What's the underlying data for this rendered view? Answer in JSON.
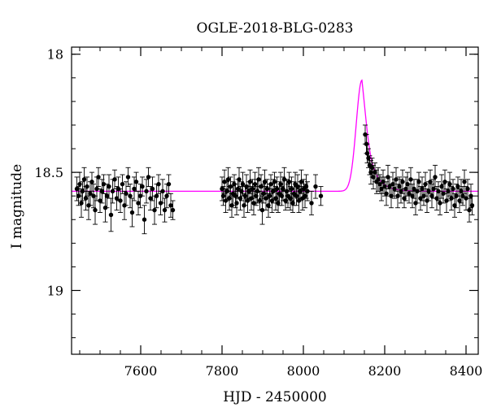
{
  "chart_data": {
    "type": "scatter",
    "title": "OGLE-2018-BLG-0283",
    "xlabel": "HJD - 2450000",
    "ylabel": "I magnitude",
    "xlim": [
      7430,
      8430
    ],
    "ylim": [
      19.27,
      17.97
    ],
    "y_inverted": true,
    "x_ticks": [
      7600,
      7800,
      8000,
      8200,
      8400
    ],
    "x_minor_step": 50,
    "y_ticks": [
      18,
      18.5,
      19
    ],
    "y_tick_labels": [
      "18",
      "18.5",
      "19"
    ],
    "y_minor_step": 0.1,
    "grid": false,
    "colors": {
      "points": "#000000",
      "model": "#ff00ff",
      "axes": "#000000"
    },
    "series": [
      {
        "kind": "observations",
        "error_bars": true,
        "seasons": [
          {
            "x": [
              7443,
              7447,
              7450,
              7454,
              7457,
              7461,
              7465,
              7468,
              7472,
              7476,
              7480,
              7484,
              7488,
              7492,
              7496,
              7500,
              7505,
              7509,
              7513,
              7517,
              7522,
              7527,
              7531,
              7536,
              7541,
              7545,
              7550,
              7555,
              7560,
              7564,
              7569,
              7574,
              7579,
              7584,
              7589,
              7594,
              7599,
              7604,
              7609,
              7614,
              7619,
              7624,
              7629,
              7634,
              7639,
              7644,
              7649,
              7654,
              7659,
              7664,
              7669,
              7674,
              7679
            ],
            "y": [
              18.57,
              18.6,
              18.55,
              18.63,
              18.58,
              18.53,
              18.61,
              18.56,
              18.64,
              18.59,
              18.54,
              18.6,
              18.66,
              18.57,
              18.52,
              18.62,
              18.58,
              18.55,
              18.65,
              18.6,
              18.56,
              18.68,
              18.58,
              18.53,
              18.61,
              18.57,
              18.62,
              18.55,
              18.64,
              18.59,
              18.52,
              18.6,
              18.67,
              18.57,
              18.54,
              18.63,
              18.6,
              18.56,
              18.7,
              18.58,
              18.52,
              18.61,
              18.57,
              18.66,
              18.6,
              18.55,
              18.63,
              18.58,
              18.66,
              18.6,
              18.55,
              18.64,
              18.66
            ],
            "err": [
              0.05,
              0.04,
              0.05,
              0.06,
              0.04,
              0.05,
              0.05,
              0.04,
              0.06,
              0.05,
              0.04,
              0.05,
              0.06,
              0.05,
              0.04,
              0.05,
              0.05,
              0.04,
              0.06,
              0.05,
              0.05,
              0.07,
              0.05,
              0.04,
              0.05,
              0.05,
              0.05,
              0.04,
              0.06,
              0.05,
              0.04,
              0.05,
              0.06,
              0.05,
              0.04,
              0.05,
              0.05,
              0.04,
              0.06,
              0.05,
              0.04,
              0.05,
              0.05,
              0.06,
              0.05,
              0.04,
              0.05,
              0.05,
              0.05,
              0.05,
              0.04,
              0.05,
              0.04
            ]
          },
          {
            "x": [
              7800,
              7803,
              7806,
              7809,
              7812,
              7815,
              7818,
              7821,
              7824,
              7827,
              7830,
              7833,
              7836,
              7839,
              7842,
              7845,
              7848,
              7851,
              7854,
              7857,
              7860,
              7863,
              7866,
              7869,
              7872,
              7875,
              7878,
              7881,
              7884,
              7887,
              7890,
              7893,
              7896,
              7899,
              7902,
              7905,
              7908,
              7911,
              7914,
              7917,
              7920,
              7923,
              7926,
              7929,
              7932,
              7935,
              7938,
              7941,
              7944,
              7947,
              7950,
              7953,
              7956,
              7959,
              7962,
              7965,
              7968,
              7971,
              7974,
              7977,
              7980,
              7983,
              7986,
              7989,
              7992,
              7995,
              7998,
              8001,
              8004,
              8007,
              8010,
              8020,
              8030,
              8043
            ],
            "y": [
              18.57,
              18.6,
              18.54,
              18.62,
              18.58,
              18.53,
              18.61,
              18.56,
              18.64,
              18.59,
              18.55,
              18.6,
              18.63,
              18.57,
              18.53,
              18.61,
              18.58,
              18.55,
              18.64,
              18.6,
              18.56,
              18.62,
              18.58,
              18.54,
              18.61,
              18.57,
              18.63,
              18.55,
              18.6,
              18.58,
              18.53,
              18.62,
              18.56,
              18.66,
              18.59,
              18.54,
              18.61,
              18.57,
              18.64,
              18.6,
              18.55,
              18.62,
              18.58,
              18.54,
              18.61,
              18.57,
              18.63,
              18.59,
              18.55,
              18.6,
              18.57,
              18.53,
              18.62,
              18.58,
              18.6,
              18.54,
              18.61,
              18.57,
              18.63,
              18.59,
              18.55,
              18.6,
              18.56,
              18.62,
              18.58,
              18.54,
              18.61,
              18.57,
              18.6,
              18.56,
              18.58,
              18.63,
              18.56,
              18.6
            ],
            "err": [
              0.05,
              0.04,
              0.05,
              0.05,
              0.04,
              0.05,
              0.05,
              0.04,
              0.05,
              0.05,
              0.04,
              0.05,
              0.05,
              0.04,
              0.05,
              0.05,
              0.04,
              0.05,
              0.05,
              0.04,
              0.05,
              0.05,
              0.04,
              0.05,
              0.05,
              0.04,
              0.05,
              0.05,
              0.04,
              0.05,
              0.05,
              0.04,
              0.05,
              0.06,
              0.04,
              0.05,
              0.05,
              0.04,
              0.05,
              0.05,
              0.04,
              0.05,
              0.05,
              0.04,
              0.05,
              0.05,
              0.04,
              0.05,
              0.05,
              0.04,
              0.05,
              0.05,
              0.04,
              0.05,
              0.05,
              0.04,
              0.05,
              0.05,
              0.04,
              0.05,
              0.05,
              0.04,
              0.05,
              0.05,
              0.04,
              0.05,
              0.05,
              0.04,
              0.05,
              0.05,
              0.04,
              0.05,
              0.05,
              0.04
            ]
          },
          {
            "x": [
              8152,
              8155,
              8157,
              8160,
              8163,
              8166,
              8169,
              8172,
              8176,
              8180,
              8184,
              8188,
              8192,
              8196,
              8200,
              8204,
              8208,
              8212,
              8216,
              8220,
              8224,
              8228,
              8232,
              8236,
              8240,
              8244,
              8248,
              8252,
              8256,
              8260,
              8264,
              8268,
              8272,
              8276,
              8280,
              8284,
              8288,
              8292,
              8296,
              8300,
              8304,
              8308,
              8312,
              8316,
              8320,
              8324,
              8328,
              8332,
              8336,
              8340,
              8344,
              8348,
              8352,
              8356,
              8360,
              8364,
              8368,
              8372,
              8376,
              8380,
              8384,
              8388,
              8392,
              8396,
              8400,
              8404,
              8408,
              8412,
              8415
            ],
            "y": [
              18.34,
              18.38,
              18.42,
              18.44,
              18.47,
              18.5,
              18.48,
              18.52,
              18.5,
              18.54,
              18.53,
              18.55,
              18.57,
              18.54,
              18.56,
              18.59,
              18.52,
              18.56,
              18.6,
              18.55,
              18.57,
              18.53,
              18.6,
              18.56,
              18.58,
              18.54,
              18.61,
              18.57,
              18.55,
              18.59,
              18.53,
              18.6,
              18.57,
              18.63,
              18.58,
              18.54,
              18.61,
              18.57,
              18.6,
              18.55,
              18.62,
              18.58,
              18.54,
              18.6,
              18.57,
              18.52,
              18.61,
              18.58,
              18.63,
              18.56,
              18.59,
              18.54,
              18.62,
              18.58,
              18.55,
              18.61,
              18.57,
              18.64,
              18.6,
              18.56,
              18.62,
              18.58,
              18.6,
              18.54,
              18.61,
              18.57,
              18.66,
              18.6,
              18.64
            ],
            "err": [
              0.04,
              0.04,
              0.04,
              0.04,
              0.04,
              0.05,
              0.04,
              0.05,
              0.04,
              0.05,
              0.05,
              0.04,
              0.05,
              0.05,
              0.04,
              0.05,
              0.05,
              0.04,
              0.05,
              0.05,
              0.04,
              0.05,
              0.05,
              0.04,
              0.05,
              0.05,
              0.04,
              0.05,
              0.05,
              0.04,
              0.05,
              0.05,
              0.04,
              0.05,
              0.05,
              0.04,
              0.05,
              0.05,
              0.04,
              0.05,
              0.05,
              0.04,
              0.05,
              0.05,
              0.04,
              0.05,
              0.05,
              0.04,
              0.05,
              0.05,
              0.04,
              0.05,
              0.05,
              0.04,
              0.05,
              0.05,
              0.04,
              0.05,
              0.05,
              0.04,
              0.05,
              0.05,
              0.04,
              0.05,
              0.05,
              0.04,
              0.05,
              0.05,
              0.04
            ]
          }
        ]
      },
      {
        "kind": "model",
        "baseline": 18.58,
        "peak_mag": 18.11,
        "t0": 8144,
        "x_range": [
          7430,
          8430
        ]
      }
    ]
  }
}
